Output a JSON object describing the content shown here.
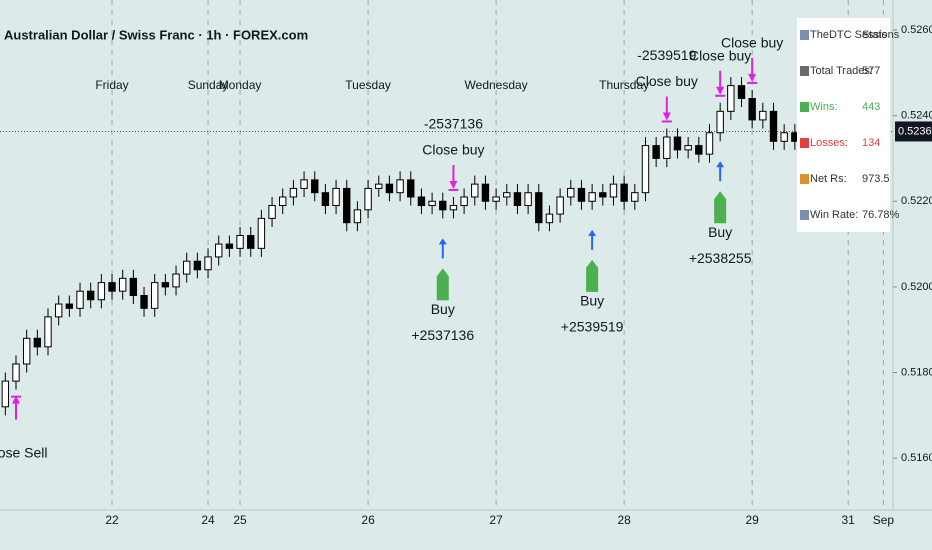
{
  "chart_data": {
    "type": "candlestick",
    "title": "Australian Dollar / Swiss Franc · 1h · FOREX.com",
    "up_color": "#ffffff",
    "down_color": "#000000",
    "open": [
      0.5172,
      0.5178,
      0.5182,
      0.5188,
      0.5186,
      0.5193,
      0.5196,
      0.5195,
      0.5199,
      0.5197,
      0.5201,
      0.5199,
      0.5202,
      0.5198,
      0.5195,
      0.5201,
      0.52,
      0.5203,
      0.5206,
      0.5204,
      0.5207,
      0.521,
      0.5209,
      0.5212,
      0.5209,
      0.5216,
      0.5219,
      0.5221,
      0.5223,
      0.5225,
      0.5222,
      0.5219,
      0.5223,
      0.5215,
      0.5218,
      0.5223,
      0.5224,
      0.5222,
      0.5225,
      0.5221,
      0.5219,
      0.522,
      0.5218,
      0.5219,
      0.5221,
      0.5224,
      0.522,
      0.5221,
      0.5222,
      0.5219,
      0.5222,
      0.5215,
      0.5217,
      0.5221,
      0.5223,
      0.522,
      0.5222,
      0.5221,
      0.5224,
      0.522,
      0.5222,
      0.5233,
      0.523,
      0.5235,
      0.5232,
      0.5233,
      0.5231,
      0.5236,
      0.5241,
      0.5247,
      0.5244,
      0.5239,
      0.5241,
      0.5234,
      0.5236,
      0.5234,
      0.5232,
      0.5235,
      0.5236,
      0.5237
    ],
    "high": [
      0.518,
      0.5184,
      0.519,
      0.519,
      0.5195,
      0.5198,
      0.5198,
      0.5201,
      0.5201,
      0.5203,
      0.5203,
      0.5204,
      0.5204,
      0.52,
      0.5203,
      0.5203,
      0.5205,
      0.5208,
      0.5208,
      0.5209,
      0.5212,
      0.5212,
      0.5214,
      0.5214,
      0.5218,
      0.5221,
      0.5223,
      0.5225,
      0.5227,
      0.5227,
      0.5224,
      0.5225,
      0.5225,
      0.522,
      0.5225,
      0.5226,
      0.5226,
      0.5227,
      0.5227,
      0.5223,
      0.5222,
      0.5222,
      0.5221,
      0.5223,
      0.5226,
      0.5226,
      0.5223,
      0.5224,
      0.5224,
      0.5224,
      0.5224,
      0.5219,
      0.5223,
      0.5225,
      0.5225,
      0.5224,
      0.5224,
      0.5226,
      0.5226,
      0.5224,
      0.5235,
      0.5235,
      0.5237,
      0.5237,
      0.5235,
      0.5235,
      0.5238,
      0.5243,
      0.5249,
      0.5249,
      0.5246,
      0.5243,
      0.5243,
      0.5238,
      0.5238,
      0.5236,
      0.5237,
      0.5238,
      0.5239,
      0.5239
    ],
    "low": [
      0.517,
      0.5176,
      0.518,
      0.5184,
      0.5184,
      0.5191,
      0.5193,
      0.5193,
      0.5195,
      0.5195,
      0.5197,
      0.5197,
      0.5196,
      0.5193,
      0.5193,
      0.5198,
      0.5198,
      0.5201,
      0.5202,
      0.5202,
      0.5205,
      0.5207,
      0.5207,
      0.5207,
      0.5207,
      0.5214,
      0.5217,
      0.5219,
      0.5221,
      0.522,
      0.5217,
      0.5217,
      0.5213,
      0.5213,
      0.5216,
      0.5221,
      0.522,
      0.522,
      0.5219,
      0.5217,
      0.5217,
      0.5216,
      0.5216,
      0.5217,
      0.5219,
      0.5218,
      0.5218,
      0.5219,
      0.5217,
      0.5217,
      0.5213,
      0.5213,
      0.5215,
      0.5219,
      0.5218,
      0.5218,
      0.5219,
      0.5219,
      0.5218,
      0.5218,
      0.522,
      0.5228,
      0.5228,
      0.523,
      0.523,
      0.5229,
      0.5229,
      0.5234,
      0.5239,
      0.5242,
      0.5237,
      0.5237,
      0.5232,
      0.5232,
      0.5232,
      0.523,
      0.523,
      0.5233,
      0.5234,
      0.5234
    ],
    "close": [
      0.5178,
      0.5182,
      0.5188,
      0.5186,
      0.5193,
      0.5196,
      0.5195,
      0.5199,
      0.5197,
      0.5201,
      0.5199,
      0.5202,
      0.5198,
      0.5195,
      0.5201,
      0.52,
      0.5203,
      0.5206,
      0.5204,
      0.5207,
      0.521,
      0.5209,
      0.5212,
      0.5209,
      0.5216,
      0.5219,
      0.5221,
      0.5223,
      0.5225,
      0.5222,
      0.5219,
      0.5223,
      0.5215,
      0.5218,
      0.5223,
      0.5224,
      0.5222,
      0.5225,
      0.5221,
      0.5219,
      0.522,
      0.5218,
      0.5219,
      0.5221,
      0.5224,
      0.522,
      0.5221,
      0.5222,
      0.5219,
      0.5222,
      0.5215,
      0.5217,
      0.5221,
      0.5223,
      0.522,
      0.5222,
      0.5221,
      0.5224,
      0.522,
      0.5222,
      0.5233,
      0.523,
      0.5235,
      0.5232,
      0.5233,
      0.5231,
      0.5236,
      0.5241,
      0.5247,
      0.5244,
      0.5239,
      0.5241,
      0.5234,
      0.5236,
      0.5234,
      0.5232,
      0.5235,
      0.5236,
      0.5237,
      0.52363
    ],
    "xlim": [
      -0.5,
      83.2
    ],
    "xticks": [
      {
        "value": 10,
        "label": "22"
      },
      {
        "value": 19,
        "label": "24"
      },
      {
        "value": 22,
        "label": "25"
      },
      {
        "value": 34,
        "label": "26"
      },
      {
        "value": 46,
        "label": "27"
      },
      {
        "value": 58,
        "label": "28"
      },
      {
        "value": 70,
        "label": "29"
      },
      {
        "value": 79,
        "label": "31"
      },
      {
        "value": 82.3,
        "label": "Sep"
      }
    ],
    "day_labels": [
      {
        "value": 10,
        "label": "Friday"
      },
      {
        "value": 19,
        "label": "Sunday"
      },
      {
        "value": 22,
        "label": "Monday"
      },
      {
        "value": 34,
        "label": "Tuesday"
      },
      {
        "value": 46,
        "label": "Wednesday"
      },
      {
        "value": 58,
        "label": "Thursday"
      }
    ],
    "ylim": [
      0.51479,
      0.5267
    ],
    "yticks": [
      {
        "value": 0.526,
        "label": "0.52600"
      },
      {
        "value": 0.524,
        "label": "0.52400"
      },
      {
        "value": 0.522,
        "label": "0.52200"
      },
      {
        "value": 0.52,
        "label": "0.52000"
      },
      {
        "value": 0.518,
        "label": "0.51800"
      },
      {
        "value": 0.516,
        "label": "0.51600"
      }
    ],
    "last_price": {
      "value": 0.52363,
      "label": "0.52363"
    },
    "annotations": [
      {
        "index": 1,
        "kind": "close",
        "side": "below",
        "lines": [
          "Close Sell"
        ]
      },
      {
        "index": 41,
        "kind": "buy",
        "side": "below",
        "lines": [
          "Buy",
          "+2537136"
        ]
      },
      {
        "index": 42,
        "kind": "close",
        "side": "above",
        "lines": [
          "-2537136",
          "Close buy"
        ]
      },
      {
        "index": 55,
        "kind": "buy",
        "side": "below",
        "lines": [
          "Buy",
          "+2539519"
        ]
      },
      {
        "index": 62,
        "kind": "close",
        "side": "above",
        "lines": [
          "-2539519",
          "Close buy"
        ]
      },
      {
        "index": 67,
        "kind": "buy",
        "side": "below",
        "lines": [
          "Buy",
          "+2538255"
        ]
      },
      {
        "index": 67,
        "kind": "close",
        "side": "above",
        "lines": [
          "Close buy"
        ]
      },
      {
        "index": 70,
        "kind": "close",
        "side": "above",
        "lines": [
          "Close buy"
        ]
      }
    ],
    "stats": {
      "header": [
        "TheDTC Sessions",
        "Stats"
      ],
      "rows": [
        [
          "Total Trades:",
          577
        ],
        [
          "Wins:",
          443
        ],
        [
          "Losses:",
          134
        ],
        [
          "Net Rs:",
          973.5
        ],
        [
          "Win Rate:",
          "76.78%"
        ]
      ]
    }
  }
}
